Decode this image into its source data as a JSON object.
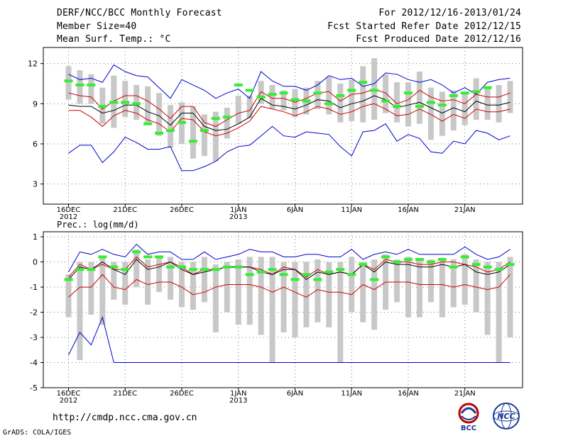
{
  "header": {
    "title": "DERF/NCC/BCC Monthly Forecast",
    "member": "Member Size=40",
    "variable": "Mean Surf. Temp.: °C",
    "period": "For 2012/12/16-2013/01/24",
    "started": "Fcst Started Refer Date 2012/12/15",
    "produced": "Fcst Produced Date 2012/12/16"
  },
  "footer": {
    "url": "http://cmdp.ncc.cma.gov.cn",
    "credit": "GrADS: COLA/IGES"
  },
  "logos": {
    "bcc": "BCC",
    "ncc": "NCC"
  },
  "colors": {
    "spread": "#c8c8c8",
    "ens_mean": "#000000",
    "std": "#d00000",
    "extreme": "#0000d0",
    "obs": "#33ee33"
  },
  "chart_data": [
    {
      "type": "line",
      "title": "Mean Surf. Temp.: °C",
      "ylabel": "",
      "ylim": [
        1.5,
        13.2
      ],
      "yticks": [
        3,
        6,
        9,
        12
      ],
      "xlabels": [
        "16DEC",
        "21DEC",
        "26DEC",
        "1JAN",
        "6JAN",
        "11JAN",
        "16JAN",
        "21JAN"
      ],
      "xlabel_days": [
        1,
        6,
        11,
        16,
        21,
        26,
        31,
        36
      ],
      "year_labels": [
        "2012",
        "2013"
      ],
      "year_label_days": [
        1,
        16
      ],
      "days": 40,
      "series": [
        {
          "name": "max",
          "color": "#0000d0",
          "values": [
            11.2,
            10.8,
            10.9,
            10.6,
            11.9,
            11.4,
            11.1,
            11.0,
            10.2,
            9.4,
            10.8,
            10.4,
            10.0,
            9.4,
            9.8,
            10.1,
            9.4,
            11.4,
            10.7,
            10.3,
            10.3,
            10.0,
            10.4,
            11.1,
            10.8,
            10.9,
            10.3,
            10.5,
            11.3,
            11.2,
            10.8,
            10.6,
            10.8,
            10.4,
            9.8,
            10.2,
            9.7,
            10.6,
            10.8,
            10.9
          ]
        },
        {
          "name": "mean+std",
          "color": "#d00000",
          "values": [
            9.8,
            9.6,
            9.5,
            8.6,
            9.2,
            9.6,
            9.6,
            9.2,
            8.6,
            7.9,
            8.8,
            8.8,
            7.6,
            7.3,
            7.8,
            8.3,
            8.5,
            9.9,
            9.4,
            9.4,
            9.1,
            9.4,
            9.8,
            9.9,
            9.2,
            9.7,
            9.8,
            10.1,
            9.8,
            9.0,
            9.3,
            10.0,
            9.5,
            9.2,
            9.3,
            9.0,
            9.7,
            9.5,
            9.5,
            9.8
          ]
        },
        {
          "name": "ensemble mean",
          "color": "#000000",
          "values": [
            8.9,
            8.8,
            8.8,
            8.3,
            8.5,
            8.9,
            8.9,
            8.4,
            8.1,
            7.4,
            8.3,
            8.3,
            7.3,
            7.0,
            7.1,
            7.5,
            8.0,
            9.4,
            8.9,
            8.8,
            8.6,
            8.9,
            9.3,
            9.2,
            8.7,
            9.0,
            9.2,
            9.6,
            9.3,
            8.7,
            8.9,
            9.1,
            8.7,
            8.3,
            8.7,
            8.4,
            9.2,
            8.9,
            8.9,
            9.1
          ]
        },
        {
          "name": "mean-std",
          "color": "#d00000",
          "values": [
            8.5,
            8.5,
            8.0,
            7.3,
            8.1,
            8.5,
            8.3,
            7.8,
            7.5,
            6.9,
            7.9,
            7.8,
            6.9,
            6.6,
            6.8,
            7.2,
            7.7,
            8.8,
            8.6,
            8.4,
            8.1,
            8.4,
            8.8,
            8.6,
            8.2,
            8.4,
            8.8,
            9.0,
            8.6,
            8.1,
            8.2,
            8.6,
            8.2,
            7.7,
            8.2,
            7.9,
            8.6,
            8.4,
            8.4,
            8.6
          ]
        },
        {
          "name": "min",
          "color": "#0000d0",
          "values": [
            5.3,
            5.9,
            5.9,
            4.6,
            5.4,
            6.5,
            6.1,
            5.6,
            5.6,
            5.8,
            4.0,
            4.0,
            4.3,
            4.7,
            5.4,
            5.8,
            5.9,
            6.6,
            7.3,
            6.6,
            6.5,
            6.9,
            6.8,
            6.7,
            5.8,
            5.1,
            6.9,
            7.0,
            7.5,
            6.2,
            6.7,
            6.4,
            5.4,
            5.3,
            6.2,
            6.0,
            7.0,
            6.8,
            6.3,
            6.6
          ]
        },
        {
          "name": "observation",
          "color": "#33ee33",
          "values": [
            10.7,
            10.4,
            10.4,
            8.8,
            9.1,
            9.1,
            9.0,
            7.5,
            6.8,
            7.0,
            7.6,
            6.2,
            7.0,
            7.9,
            8.0,
            10.4,
            10.0,
            9.5,
            9.7,
            9.8,
            9.3,
            9.2,
            9.8,
            9.0,
            9.6,
            10.0,
            10.6,
            10.0,
            9.2,
            8.8,
            9.8,
            8.8,
            9.1,
            8.9,
            9.6,
            9.8,
            9.9,
            10.2
          ]
        }
      ],
      "boxes": {
        "low": [
          9.3,
          9.0,
          9.0,
          7.5,
          7.2,
          8.0,
          7.8,
          7.6,
          6.6,
          5.7,
          6.0,
          4.9,
          5.1,
          4.7,
          6.4,
          7.5,
          7.9,
          9.0,
          8.6,
          8.5,
          8.0,
          8.2,
          8.6,
          8.2,
          7.6,
          7.7,
          7.6,
          7.8,
          8.3,
          7.6,
          7.3,
          7.5,
          6.3,
          6.6,
          7.0,
          7.4,
          7.8,
          7.8,
          7.6,
          8.3
        ],
        "high": [
          11.8,
          11.5,
          11.2,
          10.2,
          11.1,
          10.7,
          10.4,
          10.3,
          9.8,
          8.9,
          9.1,
          8.8,
          8.2,
          8.4,
          8.7,
          9.6,
          9.6,
          10.7,
          10.4,
          10.0,
          10.1,
          10.2,
          10.7,
          11.0,
          10.5,
          10.8,
          11.8,
          12.4,
          11.2,
          10.6,
          10.6,
          11.4,
          10.2,
          9.9,
          10.0,
          9.8,
          10.9,
          10.3,
          10.4,
          10.7
        ]
      }
    },
    {
      "type": "line",
      "title": "Prec.: log(mm/d)",
      "ylabel": "",
      "ylim": [
        -5,
        1.2
      ],
      "yticks": [
        -5,
        -4,
        -3,
        -2,
        -1,
        0,
        1
      ],
      "xlabels": [
        "16DEC",
        "21DEC",
        "26DEC",
        "1JAN",
        "6JAN",
        "11JAN",
        "16JAN",
        "21JAN"
      ],
      "xlabel_days": [
        1,
        6,
        11,
        16,
        21,
        26,
        31,
        36
      ],
      "year_labels": [
        "2012",
        "2013"
      ],
      "year_label_days": [
        1,
        16
      ],
      "days": 40,
      "series": [
        {
          "name": "max",
          "color": "#0000d0",
          "values": [
            -0.4,
            0.4,
            0.3,
            0.5,
            0.3,
            0.2,
            0.7,
            0.3,
            0.4,
            0.4,
            0.1,
            0.1,
            0.4,
            0.1,
            0.2,
            0.3,
            0.5,
            0.4,
            0.4,
            0.2,
            0.2,
            0.3,
            0.3,
            0.2,
            0.2,
            0.5,
            0.1,
            0.3,
            0.4,
            0.3,
            0.5,
            0.3,
            0.3,
            0.3,
            0.3,
            0.6,
            0.3,
            0.1,
            0.2,
            0.5
          ]
        },
        {
          "name": "mean+std",
          "color": "#d00000",
          "values": [
            -0.6,
            -0.1,
            -0.3,
            -0.1,
            -0.3,
            -0.3,
            0.2,
            -0.2,
            -0.1,
            0.0,
            -0.2,
            -0.5,
            -0.3,
            -0.3,
            -0.2,
            -0.2,
            -0.2,
            -0.3,
            -0.5,
            -0.2,
            -0.3,
            -0.6,
            -0.3,
            -0.5,
            -0.4,
            -0.5,
            -0.1,
            -0.3,
            0.1,
            0.0,
            0.0,
            -0.1,
            -0.1,
            0.0,
            0.0,
            -0.1,
            -0.2,
            -0.4,
            -0.3,
            0.0
          ]
        },
        {
          "name": "ensemble mean",
          "color": "#000000",
          "values": [
            -0.7,
            -0.2,
            -0.3,
            0.0,
            -0.3,
            -0.5,
            0.1,
            -0.3,
            -0.2,
            0.0,
            -0.3,
            -0.5,
            -0.4,
            -0.3,
            -0.2,
            -0.2,
            -0.2,
            -0.4,
            -0.5,
            -0.3,
            -0.3,
            -0.7,
            -0.4,
            -0.5,
            -0.4,
            -0.5,
            -0.1,
            -0.4,
            0.0,
            -0.1,
            -0.1,
            -0.2,
            -0.2,
            -0.1,
            -0.2,
            -0.1,
            -0.4,
            -0.5,
            -0.4,
            -0.1
          ]
        },
        {
          "name": "mean-std",
          "color": "#d00000",
          "values": [
            -1.4,
            -1.0,
            -1.0,
            -0.5,
            -1.0,
            -1.1,
            -0.7,
            -0.9,
            -0.8,
            -0.8,
            -1.0,
            -1.3,
            -1.2,
            -1.0,
            -0.9,
            -0.9,
            -0.9,
            -1.0,
            -1.2,
            -1.0,
            -1.2,
            -1.4,
            -1.1,
            -1.2,
            -1.2,
            -1.3,
            -0.9,
            -1.1,
            -0.8,
            -0.8,
            -0.8,
            -0.9,
            -0.9,
            -0.9,
            -1.0,
            -0.9,
            -1.0,
            -1.1,
            -1.0,
            -0.5
          ]
        },
        {
          "name": "min",
          "color": "#0000d0",
          "values": [
            -3.7,
            -2.8,
            -3.3,
            -2.2,
            -4.0,
            -4.0,
            -4.0,
            -4.0,
            -4.0,
            -4.0,
            -4.0,
            -4.0,
            -4.0,
            -4.0,
            -4.0,
            -4.0,
            -4.0,
            -4.0,
            -4.0,
            -4.0,
            -4.0,
            -4.0,
            -4.0,
            -4.0,
            -4.0,
            -4.0,
            -4.0,
            -4.0,
            -4.0,
            -4.0,
            -4.0,
            -4.0,
            -4.0,
            -4.0,
            -4.0,
            -4.0,
            -4.0,
            -4.0,
            -4.0,
            -4.0
          ]
        },
        {
          "name": "observation",
          "color": "#33ee33",
          "values": [
            -0.7,
            -0.3,
            -0.3,
            0.2,
            -0.2,
            -0.3,
            0.4,
            0.2,
            0.2,
            -0.2,
            -0.2,
            -0.3,
            -0.3,
            -0.3,
            -0.2,
            -0.2,
            -0.5,
            -0.4,
            -0.3,
            -0.5,
            -0.7,
            -0.5,
            -0.7,
            -0.4,
            -0.3,
            -0.5,
            -0.1,
            -0.7,
            0.2,
            0.0,
            0.1,
            0.1,
            0.0,
            0.1,
            -0.2,
            0.2,
            -0.1,
            -0.2,
            -0.3,
            -0.1
          ]
        }
      ],
      "boxes": {
        "low": [
          -2.2,
          -3.9,
          -2.1,
          -2.5,
          -1.5,
          -1.7,
          -1.0,
          -1.7,
          -1.2,
          -1.5,
          -1.8,
          -1.9,
          -1.6,
          -2.8,
          -2.0,
          -2.5,
          -2.5,
          -2.9,
          -4.0,
          -2.8,
          -3.0,
          -2.6,
          -2.4,
          -2.6,
          -4.0,
          -2.0,
          -2.4,
          -2.7,
          -1.9,
          -1.6,
          -2.2,
          -2.2,
          -1.6,
          -2.2,
          -1.8,
          -1.7,
          -2.0,
          -2.9,
          -4.0,
          -3.0
        ],
        "high": [
          -0.5,
          0.0,
          0.0,
          0.2,
          0.0,
          0.0,
          0.5,
          0.1,
          0.2,
          0.2,
          0.0,
          0.0,
          0.2,
          -0.1,
          0.0,
          0.1,
          0.2,
          0.2,
          0.2,
          0.0,
          0.0,
          0.0,
          0.1,
          0.0,
          0.0,
          0.2,
          0.0,
          0.1,
          0.3,
          0.1,
          0.2,
          0.1,
          0.1,
          0.1,
          0.1,
          0.3,
          0.1,
          0.0,
          0.0,
          0.2
        ]
      }
    }
  ]
}
